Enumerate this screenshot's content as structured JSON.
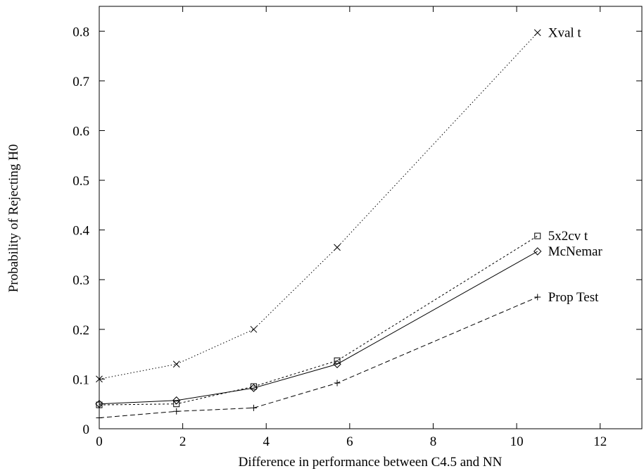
{
  "chart_data": {
    "type": "line",
    "xlabel": "Difference in performance between C4.5 and NN",
    "ylabel": "Probability of Rejecting H0",
    "xlim": [
      0,
      13
    ],
    "ylim": [
      0,
      0.85
    ],
    "xticks": [
      0,
      2,
      4,
      6,
      8,
      10,
      12
    ],
    "xtick_labels": [
      "0",
      "2",
      "4",
      "6",
      "8",
      "10",
      "12"
    ],
    "yticks": [
      0,
      0.1,
      0.2,
      0.3,
      0.4,
      0.5,
      0.6,
      0.7,
      0.8
    ],
    "ytick_labels": [
      "0",
      "0.1",
      "0.2",
      "0.3",
      "0.4",
      "0.5",
      "0.6",
      "0.7",
      "0.8"
    ],
    "grid": false,
    "legend": "labels at line ends",
    "series": [
      {
        "name": "Xval t",
        "marker": "x",
        "line_style": "dotted",
        "x": [
          0,
          1.85,
          3.7,
          5.7,
          10.5
        ],
        "y": [
          0.1,
          0.13,
          0.2,
          0.365,
          0.797
        ]
      },
      {
        "name": "5x2cv t",
        "marker": "square",
        "line_style": "short-dashed",
        "x": [
          0,
          1.85,
          3.7,
          5.7,
          10.5
        ],
        "y": [
          0.048,
          0.05,
          0.085,
          0.137,
          0.388
        ]
      },
      {
        "name": "McNemar",
        "marker": "diamond",
        "line_style": "solid",
        "x": [
          0,
          1.85,
          3.7,
          5.7,
          10.5
        ],
        "y": [
          0.05,
          0.057,
          0.082,
          0.13,
          0.357
        ]
      },
      {
        "name": "Prop Test",
        "marker": "plus",
        "line_style": "dashed",
        "x": [
          0,
          1.85,
          3.7,
          5.7,
          10.5
        ],
        "y": [
          0.022,
          0.035,
          0.042,
          0.092,
          0.265
        ]
      }
    ]
  }
}
